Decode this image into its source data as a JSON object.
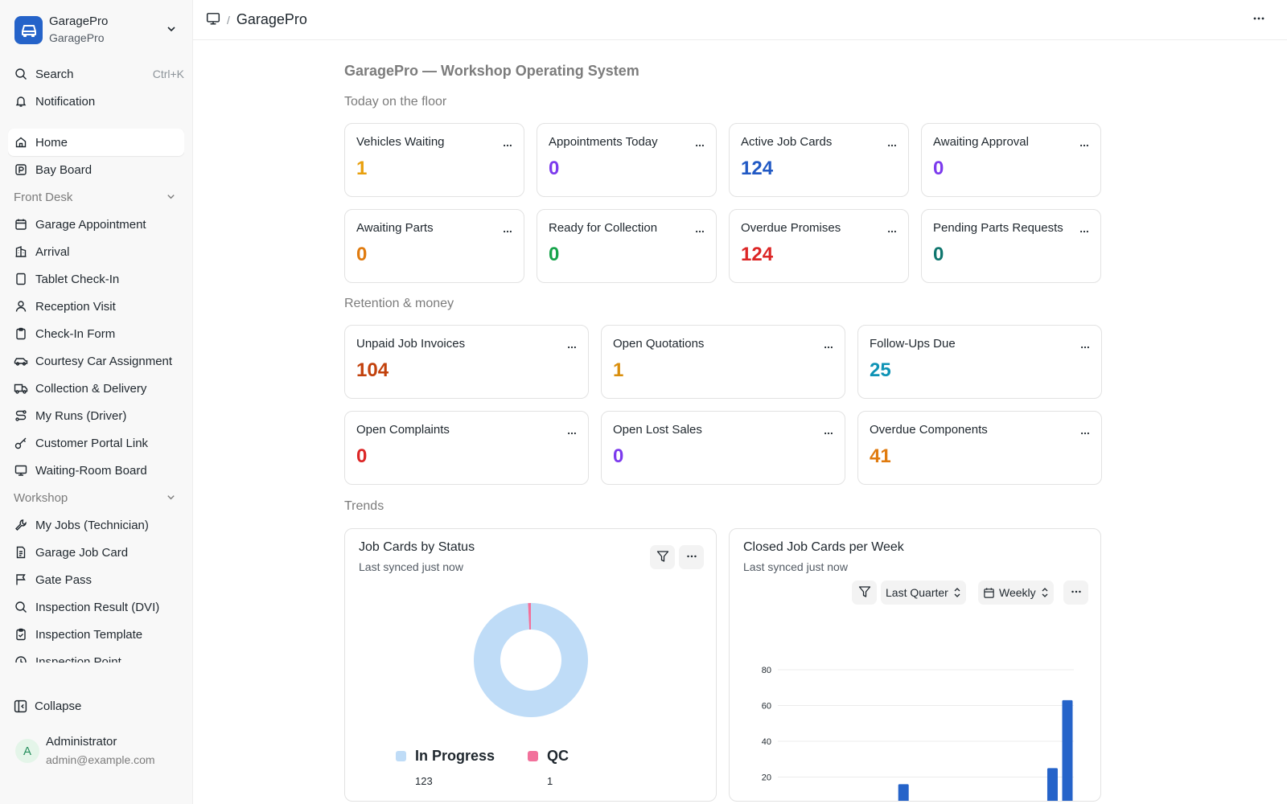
{
  "app": {
    "title": "GaragePro",
    "subtitle": "GaragePro"
  },
  "sidebar": {
    "search_label": "Search",
    "search_shortcut": "Ctrl+K",
    "notification_label": "Notification",
    "home": "Home",
    "bay_board": "Bay Board",
    "front_desk": {
      "title": "Front Desk",
      "items": [
        "Garage Appointment",
        "Arrival",
        "Tablet Check-In",
        "Reception Visit",
        "Check-In Form",
        "Courtesy Car Assignment",
        "Collection & Delivery",
        "My Runs (Driver)",
        "Customer Portal Link",
        "Waiting-Room Board"
      ]
    },
    "workshop": {
      "title": "Workshop",
      "items": [
        "My Jobs (Technician)",
        "Garage Job Card",
        "Gate Pass",
        "Inspection Result (DVI)",
        "Inspection Template",
        "Inspection Point"
      ]
    },
    "collapse_label": "Collapse",
    "user": {
      "initial": "A",
      "name": "Administrator",
      "email": "admin@example.com"
    }
  },
  "header": {
    "breadcrumb": "GaragePro",
    "separator": "/"
  },
  "page": {
    "title": "GaragePro — Workshop Operating System",
    "sections": {
      "floor": "Today on the floor",
      "money": "Retention & money",
      "trends": "Trends"
    }
  },
  "floor_cards": [
    {
      "label": "Vehicles Waiting",
      "value": "1",
      "color": "#e8a00e"
    },
    {
      "label": "Appointments Today",
      "value": "0",
      "color": "#7c3aed"
    },
    {
      "label": "Active Job Cards",
      "value": "124",
      "color": "#2159c4"
    },
    {
      "label": "Awaiting Approval",
      "value": "0",
      "color": "#7c3aed"
    },
    {
      "label": "Awaiting Parts",
      "value": "0",
      "color": "#e07b0f"
    },
    {
      "label": "Ready for Collection",
      "value": "0",
      "color": "#16a34a"
    },
    {
      "label": "Overdue Promises",
      "value": "124",
      "color": "#dc2626"
    },
    {
      "label": "Pending Parts Requests",
      "value": "0",
      "color": "#0f766e"
    }
  ],
  "money_cards": [
    {
      "label": "Unpaid Job Invoices",
      "value": "104",
      "color": "#c2410c"
    },
    {
      "label": "Open Quotations",
      "value": "1",
      "color": "#d98e0c"
    },
    {
      "label": "Follow-Ups Due",
      "value": "25",
      "color": "#0e93b5"
    },
    {
      "label": "Open Complaints",
      "value": "0",
      "color": "#dc2626"
    },
    {
      "label": "Open Lost Sales",
      "value": "0",
      "color": "#7c3aed"
    },
    {
      "label": "Overdue Components",
      "value": "41",
      "color": "#e07b0f"
    }
  ],
  "charts": {
    "status": {
      "title": "Job Cards by Status",
      "synced": "Last synced just now"
    },
    "weekly": {
      "title": "Closed Job Cards per Week",
      "synced": "Last synced just now",
      "range_label": "Last Quarter",
      "interval_label": "Weekly"
    }
  },
  "chart_data": [
    {
      "type": "pie",
      "title": "Job Cards by Status",
      "categories": [
        "In Progress",
        "QC"
      ],
      "values": [
        123,
        1
      ],
      "colors": [
        "#bfdcf7",
        "#f2719b"
      ]
    },
    {
      "type": "bar",
      "title": "Closed Job Cards per Week",
      "ylim": [
        0,
        80
      ],
      "yticks": [
        20,
        40,
        60,
        80
      ],
      "series": [
        {
          "values": [
            0,
            0,
            0,
            0,
            0,
            0,
            0,
            0,
            16,
            0,
            0,
            0,
            0,
            0,
            0,
            0,
            0,
            0,
            25,
            63
          ],
          "color": "#2563c9"
        }
      ],
      "grid": true
    }
  ]
}
